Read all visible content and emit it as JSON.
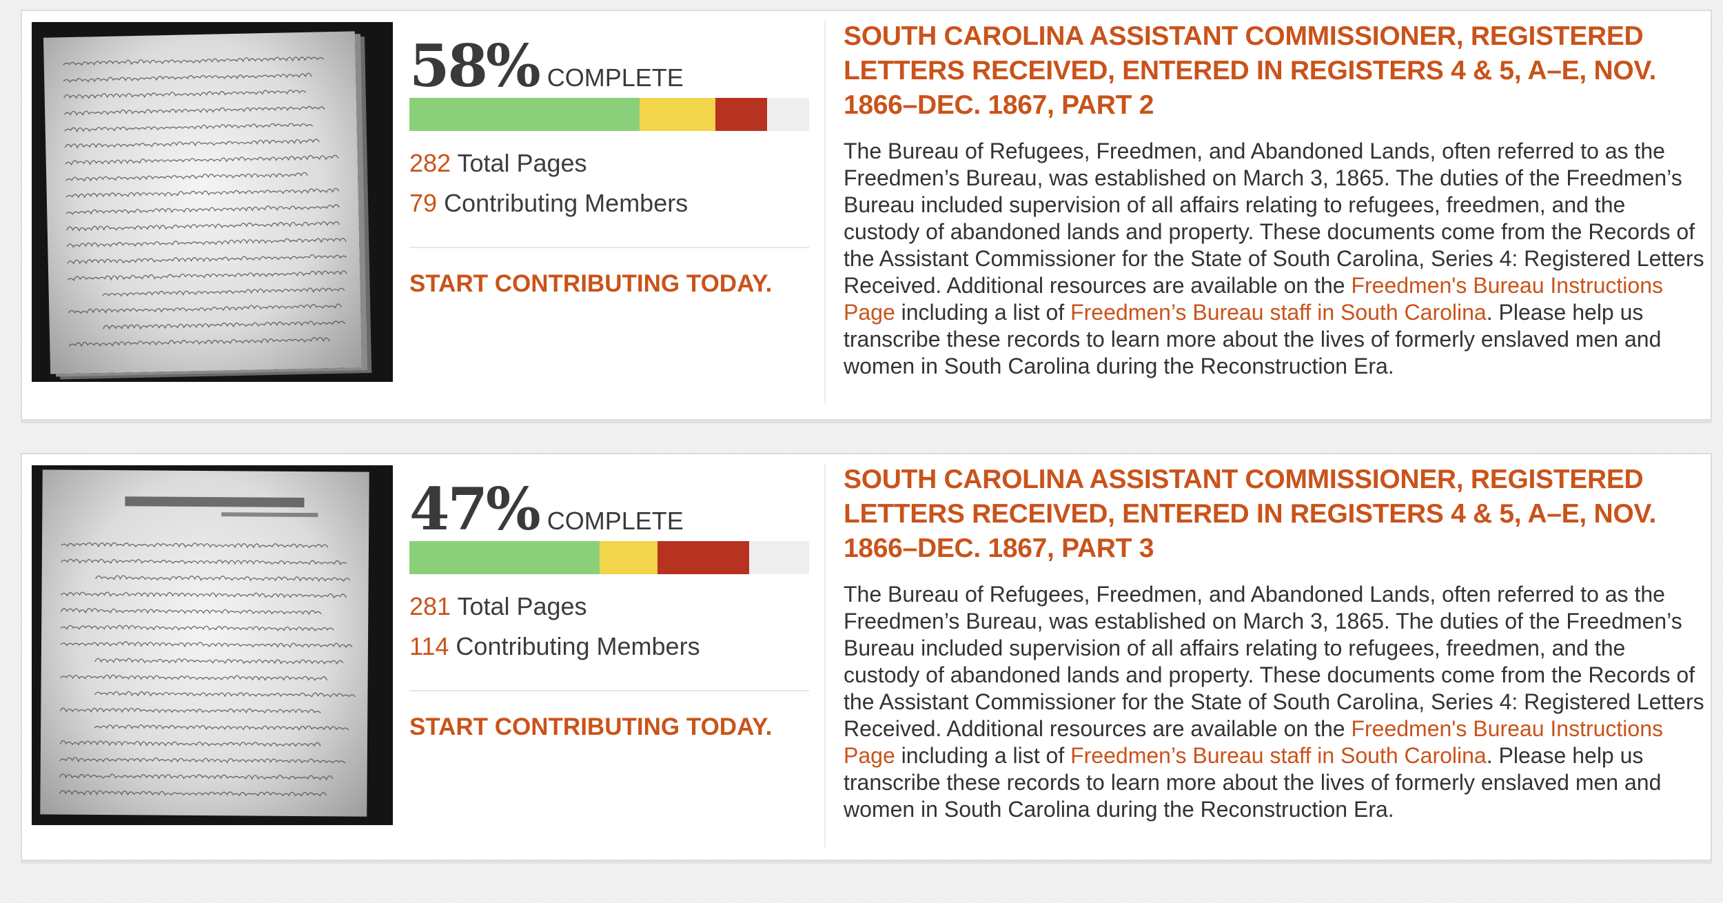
{
  "colors": {
    "accent": "#c9531a",
    "bar_green": "#8ad07a",
    "bar_yellow": "#f2d54a",
    "bar_red": "#b63322",
    "bar_track": "#eeeeee",
    "text": "#333333"
  },
  "projects": [
    {
      "percent": "58%",
      "complete_label": "COMPLETE",
      "progress": {
        "green": 0.575,
        "yellow": 0.19,
        "red": 0.13
      },
      "total_pages": "282",
      "total_pages_label": "Total Pages",
      "members": "79",
      "members_label": "Contributing Members",
      "cta": "START CONTRIBUTING TODAY.",
      "title": "SOUTH CAROLINA ASSISTANT COMMISSIONER, REGISTERED LETTERS RECEIVED, ENTERED IN REGISTERS 4 & 5, A–E, NOV. 1866–DEC. 1867, PART 2",
      "desc_part1": "The Bureau of Refugees, Freedmen, and Abandoned Lands, often referred to as the Freedmen’s Bureau, was established on March 3, 1865. The duties of the Freedmen’s Bureau included supervision of all affairs relating to refugees, freedmen, and the custody of abandoned lands and property. These documents come from the Records of the Assistant Commissioner for the State of South Carolina, Series 4: Registered Letters Received. Additional resources are available on the ",
      "link1": "Freedmen's Bureau Instructions Page",
      "desc_part2": " including a list of ",
      "link2": "Freedmen’s Bureau staff in South Carolina",
      "desc_part3": ". Please help us transcribe these records to learn more about the lives of formerly enslaved men and women in South Carolina during the Reconstruction Era."
    },
    {
      "percent": "47%",
      "complete_label": "COMPLETE",
      "progress": {
        "green": 0.475,
        "yellow": 0.145,
        "red": 0.23
      },
      "total_pages": "281",
      "total_pages_label": "Total Pages",
      "members": "114",
      "members_label": "Contributing Members",
      "cta": "START CONTRIBUTING TODAY.",
      "title": "SOUTH CAROLINA ASSISTANT COMMISSIONER, REGISTERED LETTERS RECEIVED, ENTERED IN REGISTERS 4 & 5, A–E, NOV. 1866–DEC. 1867, PART 3",
      "desc_part1": "The Bureau of Refugees, Freedmen, and Abandoned Lands, often referred to as the Freedmen’s Bureau, was established on March 3, 1865. The duties of the Freedmen’s Bureau included supervision of all affairs relating to refugees, freedmen, and the custody of abandoned lands and property. These documents come from the Records of the Assistant Commissioner for the State of South Carolina, Series 4: Registered Letters Received. Additional resources are available on the ",
      "link1": "Freedmen's Bureau Instructions Page",
      "desc_part2": " including a list of ",
      "link2": "Freedmen’s Bureau staff in South Carolina",
      "desc_part3": ". Please help us transcribe these records to learn more about the lives of formerly enslaved men and women in South Carolina during the Reconstruction Era."
    }
  ]
}
